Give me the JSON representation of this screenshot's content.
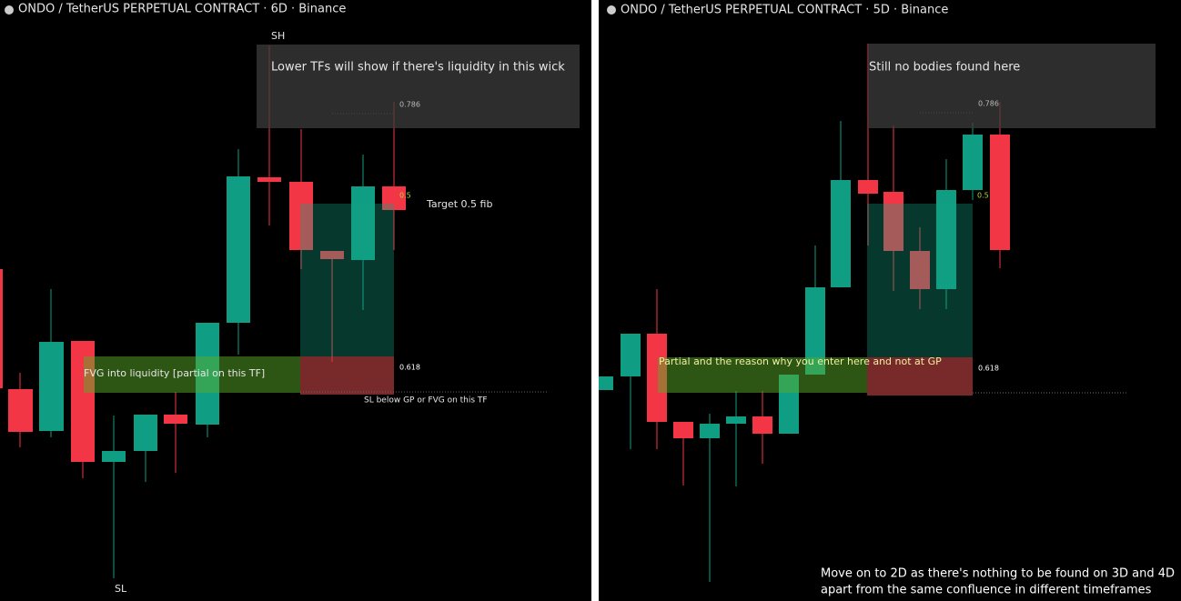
{
  "left_panel": {
    "header": "ONDO / TetherUS PERPETUAL CONTRACT · 6D · Binance",
    "note": "Lower TFs will show if there's liquidity in this wick",
    "swing_high": "SH",
    "swing_low": "SL",
    "fib_786": "0.786",
    "fib_5": "0.5",
    "fib_618": "0.618",
    "target": "Target 0.5 fib",
    "fvg": "FVG into liquidity [partial on this TF]",
    "stop": "SL below GP or FVG on this TF"
  },
  "right_panel": {
    "header": "ONDO / TetherUS PERPETUAL CONTRACT · 5D · Binance",
    "note": "Still no bodies found here",
    "fib_786": "0.786",
    "fib_5": "0.5",
    "fib_618": "0.618",
    "partial": "Partial and the reason why you enter here and not at GP",
    "footer_line1": "Move on to 2D as there's nothing to be found on 3D and 4D",
    "footer_line2": "apart from the same confluence in different timeframes"
  }
}
